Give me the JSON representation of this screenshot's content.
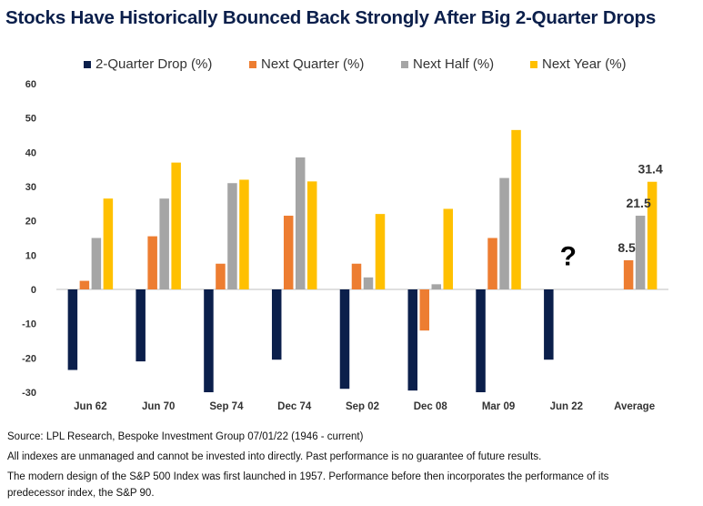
{
  "chart_data": {
    "type": "bar",
    "title": "Stocks Have Historically Bounced Back Strongly After Big 2-Quarter Drops",
    "categories": [
      "Jun 62",
      "Jun 70",
      "Sep 74",
      "Dec 74",
      "Sep 02",
      "Dec 08",
      "Mar 09",
      "Jun 22",
      "Average"
    ],
    "series": [
      {
        "name": "2-Quarter Drop (%)",
        "color": "#0b1f4b",
        "values": [
          -23.5,
          -21,
          -30,
          -20.5,
          -29,
          -29.5,
          -30,
          -20.5,
          null
        ]
      },
      {
        "name": "Next Quarter (%)",
        "color": "#ed7d31",
        "values": [
          2.5,
          15.5,
          7.5,
          21.5,
          7.5,
          -12,
          15,
          null,
          8.5
        ]
      },
      {
        "name": "Next Half (%)",
        "color": "#a5a5a5",
        "values": [
          15,
          26.5,
          31,
          38.5,
          3.5,
          1.5,
          32.5,
          null,
          21.5
        ]
      },
      {
        "name": "Next Year (%)",
        "color": "#ffc000",
        "values": [
          26.5,
          37,
          32,
          31.5,
          22,
          23.5,
          46.5,
          null,
          31.4
        ]
      }
    ],
    "data_labels": [
      {
        "category": "Average",
        "series": "Next Quarter (%)",
        "text": "8.5"
      },
      {
        "category": "Average",
        "series": "Next Half (%)",
        "text": "21.5"
      },
      {
        "category": "Average",
        "series": "Next Year (%)",
        "text": "31.4"
      }
    ],
    "annotation": {
      "category": "Jun 22",
      "text": "?"
    },
    "y_ticks": [
      "60",
      "50",
      "40",
      "30",
      "20",
      "10",
      "0",
      "-10",
      "-20",
      "-30"
    ],
    "ylim": [
      -30,
      60
    ],
    "grid": false,
    "legend_position": "top"
  },
  "footnotes": {
    "source": "Source: LPL Research, Bespoke Investment Group 07/01/22  (1946 - current)",
    "disclaimer": "All indexes are unmanaged and cannot be invested into directly. Past performance is no guarantee of future results.",
    "sp500_note_1": "The modern design of the S&P 500 Index was first launched in 1957. Performance before then incorporates the performance of its",
    "sp500_note_2": "predecessor index, the S&P 90."
  }
}
